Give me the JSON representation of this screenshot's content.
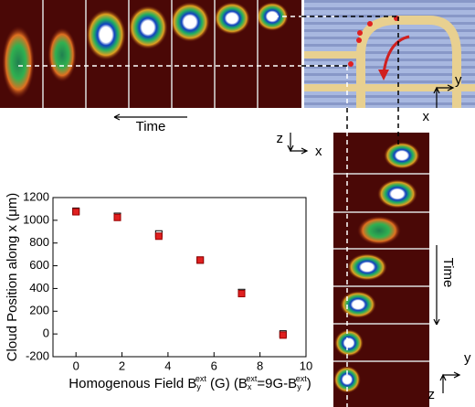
{
  "chart_data": {
    "type": "scatter",
    "x_label_parts": [
      "Homogenous Field B",
      "y",
      "ext",
      " (G)  (B",
      "x",
      "ext",
      "=9G-B",
      "y",
      "ext",
      ")"
    ],
    "y_label": "Cloud Position along x (μm)",
    "x": [
      0,
      1.8,
      3.6,
      5.4,
      7.2,
      9
    ],
    "series": [
      {
        "color": "#000000",
        "marker": "open-square",
        "values": [
          1080,
          1035,
          880,
          650,
          365,
          0
        ]
      },
      {
        "color": "#e02020",
        "marker": "filled-square",
        "values": [
          1075,
          1025,
          860,
          650,
          355,
          -10
        ]
      }
    ],
    "xlim": [
      -1,
      10
    ],
    "xticks": [
      0,
      2,
      4,
      6,
      8,
      10
    ],
    "ylim": [
      -200,
      1200
    ],
    "yticks": [
      -200,
      0,
      200,
      400,
      600,
      800,
      1000,
      1200
    ]
  },
  "labels": {
    "time_top": "Time",
    "time_right": "Time",
    "axes_mid_z": "z",
    "axes_mid_x": "x",
    "axes_schem_y": "y",
    "axes_schem_x": "x",
    "axes_br_y": "y",
    "axes_br_z": "z"
  }
}
